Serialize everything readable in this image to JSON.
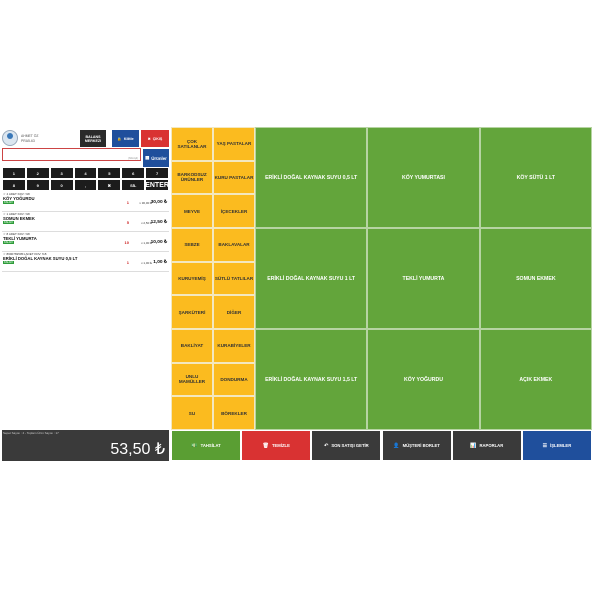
{
  "user": {
    "name": "AHMET ÖZ\nPRA5-63"
  },
  "toolbar": {
    "balance_label": "BALANS\nMERKEZI",
    "lock_label": "Kilitle",
    "exit_label": "ÇIKIŞ"
  },
  "search": {
    "placeholder": "",
    "hint": "(Nilmişli)"
  },
  "products_button": "Ürünler",
  "numpad": {
    "row1": [
      "1",
      "2",
      "3",
      "4",
      "5",
      "6",
      "7"
    ],
    "row2": [
      "8",
      "9",
      "0",
      ",",
      "✖",
      "SİL",
      "ENTER"
    ]
  },
  "cart": [
    {
      "meta": "☆ 4 ADET  KDV: %8",
      "name": "KÖY YOĞURDU",
      "badge": "KALAN",
      "qty": "1",
      "unit": "x 30,00 ₺",
      "total": "30,00 ₺"
    },
    {
      "meta": "☆ 1 ADET  KDV: %8",
      "name": "SOMUN EKMEK",
      "badge": "KALAN",
      "qty": "5",
      "unit": "x 2,50 ₺",
      "total": "12,50 ₺"
    },
    {
      "meta": "☆ 8 ADET  KDV: %8",
      "name": "TEKLİ YUMURTA",
      "badge": "KALAN",
      "qty": "10",
      "unit": "x 1,00 ₺",
      "total": "10,00 ₺"
    },
    {
      "meta": "☆ 86907695051 ADET  KDV: %8",
      "name": "ERİKLİ DOĞAL KAYNAK SUYU 0,5 LT",
      "badge": "KALAN",
      "qty": "1",
      "unit": "x 1,00 ₺",
      "total": "1,00 ₺"
    }
  ],
  "categories_col1": [
    "ÇOK SATILANLAR",
    "BARKODSUZ ÜRÜNLER",
    "MEYVE",
    "SEBZE",
    "KURUYEMİŞ",
    "ŞARKÜTERİ",
    "BAKLİYAT",
    "UNLU MAMÜLLER",
    "SU"
  ],
  "categories_col2": [
    "YAŞ PASTALAR",
    "KURU PASTALAR",
    "İÇECEKLER",
    "BAKLAVALAR",
    "SÜTLÜ TATLILAR",
    "DİĞER",
    "KURABİYELER",
    "DONDURMA",
    "BÖREKLER"
  ],
  "products": [
    [
      "ERİKLİ DOĞAL KAYNAK SUYU 0,5 LT",
      "KÖY YUMURTASI",
      "KÖY SÜTÜ 1 LT"
    ],
    [
      "ERİKLİ DOĞAL KAYNAK SUYU 1 LT",
      "TEKLİ YUMURTA",
      "SOMUN EKMEK"
    ],
    [
      "ERİKLİ DOĞAL KAYNAK SUYU 1,5 LT",
      "KÖY YOĞURDU",
      "AÇIK EKMEK"
    ]
  ],
  "footer": {
    "info": "Sepet Sayısı : 4 - Toplam Ürün Sayısı : 17",
    "total": "53,50 ₺",
    "actions": [
      "TAHSİLAT",
      "TEMİZLE",
      "SON SATIŞI GETİR",
      "MÜŞTERİ BORLET",
      "RAPORLAR",
      "İŞLEMLER"
    ]
  },
  "colors": {
    "category": "#fbbb1f",
    "product": "#63a53b",
    "tahsilat": "#5a9e33",
    "temizle": "#d93232",
    "dark": "#3a3a3a",
    "islemler": "#1f4f9c"
  }
}
